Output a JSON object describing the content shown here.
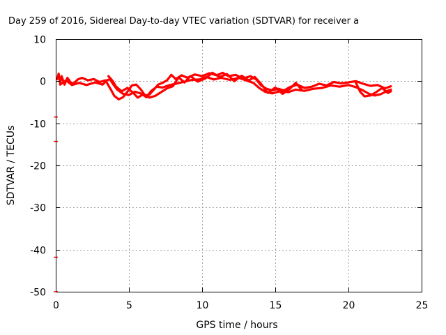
{
  "chart_data": {
    "type": "scatter",
    "title": "Day 259 of 2016, Sidereal Day-to-day VTEC variation (SDTVAR) for receiver a",
    "xlabel": "GPS time / hours",
    "ylabel": "SDTVAR / TECUs",
    "xlim": [
      0,
      25
    ],
    "ylim": [
      -50,
      10
    ],
    "xticks": [
      "0",
      "5",
      "10",
      "15",
      "20",
      "25"
    ],
    "yticks": [
      "10",
      "0",
      "-10",
      "-20",
      "-30",
      "-40",
      "-50"
    ],
    "xtick_values": [
      0,
      5,
      10,
      15,
      20,
      25
    ],
    "ytick_values": [
      10,
      0,
      -10,
      -20,
      -30,
      -40,
      -50
    ],
    "grid": true,
    "marker_color": "#ff0000",
    "series": [
      {
        "traces": [
          [
            [
              0.1,
              0.5
            ],
            [
              0.2,
              1.8
            ],
            [
              0.3,
              -0.5
            ],
            [
              0.4,
              1.2
            ],
            [
              0.6,
              -0.8
            ],
            [
              0.8,
              0.8
            ],
            [
              1.0,
              -0.2
            ],
            [
              1.2,
              -0.6
            ],
            [
              1.5,
              0.4
            ],
            [
              1.8,
              0.8
            ],
            [
              2.2,
              0.2
            ],
            [
              2.6,
              0.5
            ],
            [
              3.0,
              -0.2
            ],
            [
              3.4,
              0.2
            ],
            [
              3.6,
              -1.0
            ],
            [
              3.8,
              -2.2
            ],
            [
              4.0,
              -3.5
            ],
            [
              4.3,
              -4.3
            ],
            [
              4.6,
              -3.8
            ],
            [
              4.9,
              -2.5
            ],
            [
              5.2,
              -1.0
            ],
            [
              5.5,
              -0.8
            ],
            [
              5.8,
              -1.9
            ],
            [
              6.1,
              -3.4
            ],
            [
              6.4,
              -3.2
            ],
            [
              6.7,
              -2.0
            ],
            [
              7.0,
              -0.8
            ],
            [
              7.3,
              -0.4
            ],
            [
              7.6,
              0.2
            ],
            [
              7.9,
              1.5
            ],
            [
              8.2,
              0.5
            ],
            [
              8.6,
              1.4
            ],
            [
              9.0,
              0.8
            ],
            [
              9.5,
              1.6
            ],
            [
              10.0,
              1.2
            ],
            [
              10.5,
              1.9
            ],
            [
              11.0,
              1.4
            ],
            [
              11.4,
              2.0
            ],
            [
              11.8,
              1.2
            ],
            [
              12.3,
              1.5
            ],
            [
              12.8,
              0.6
            ],
            [
              13.3,
              1.2
            ],
            [
              13.7,
              0.4
            ],
            [
              14.0,
              -0.9
            ],
            [
              14.4,
              -1.8
            ],
            [
              14.8,
              -2.2
            ],
            [
              15.2,
              -1.8
            ],
            [
              15.6,
              -2.2
            ],
            [
              16.0,
              -1.4
            ],
            [
              16.5,
              -0.8
            ],
            [
              17.0,
              -1.6
            ],
            [
              17.5,
              -1.3
            ],
            [
              18.0,
              -0.6
            ],
            [
              18.5,
              -1.0
            ],
            [
              19.0,
              -0.2
            ],
            [
              19.5,
              -0.5
            ],
            [
              20.0,
              -0.3
            ],
            [
              20.5,
              0.0
            ],
            [
              21.0,
              -0.6
            ],
            [
              21.5,
              -1.1
            ],
            [
              22.0,
              -0.9
            ],
            [
              22.5,
              -1.7
            ],
            [
              22.9,
              -1.2
            ]
          ],
          [
            [
              0.3,
              -0.8
            ],
            [
              0.7,
              0.2
            ],
            [
              1.1,
              -0.9
            ],
            [
              1.6,
              -0.4
            ],
            [
              2.1,
              -0.9
            ],
            [
              2.7,
              -0.3
            ],
            [
              3.2,
              -0.8
            ],
            [
              3.5,
              0.2
            ],
            [
              3.7,
              0.5
            ],
            [
              3.9,
              -0.6
            ],
            [
              4.2,
              -2.0
            ],
            [
              4.6,
              -3.0
            ],
            [
              5.0,
              -3.3
            ],
            [
              5.4,
              -2.5
            ],
            [
              5.8,
              -2.9
            ],
            [
              6.2,
              -3.8
            ],
            [
              6.5,
              -2.4
            ],
            [
              6.9,
              -1.3
            ],
            [
              7.3,
              -1.5
            ],
            [
              7.8,
              -0.9
            ],
            [
              8.2,
              -0.6
            ],
            [
              8.7,
              -0.2
            ],
            [
              9.3,
              0.3
            ],
            [
              9.8,
              0.4
            ],
            [
              10.3,
              1.0
            ],
            [
              10.8,
              0.4
            ],
            [
              11.3,
              0.8
            ],
            [
              11.9,
              0.3
            ],
            [
              12.5,
              0.8
            ],
            [
              13.0,
              0.2
            ],
            [
              13.5,
              -0.4
            ],
            [
              13.9,
              -1.6
            ],
            [
              14.3,
              -2.5
            ],
            [
              14.8,
              -2.9
            ],
            [
              15.3,
              -2.4
            ],
            [
              15.9,
              -2.6
            ],
            [
              16.4,
              -2.0
            ],
            [
              17.0,
              -2.3
            ],
            [
              17.6,
              -1.8
            ],
            [
              18.2,
              -1.6
            ],
            [
              18.8,
              -1.0
            ],
            [
              19.4,
              -1.3
            ],
            [
              20.0,
              -0.9
            ],
            [
              20.5,
              -1.4
            ],
            [
              21.0,
              -2.2
            ],
            [
              21.4,
              -3.0
            ],
            [
              21.8,
              -3.4
            ],
            [
              22.2,
              -3.1
            ],
            [
              22.6,
              -2.4
            ],
            [
              22.9,
              -2.0
            ]
          ],
          [
            [
              3.6,
              1.2
            ],
            [
              3.9,
              0.0
            ],
            [
              4.1,
              -1.2
            ],
            [
              4.5,
              -2.4
            ],
            [
              4.9,
              -1.6
            ],
            [
              5.3,
              -2.8
            ],
            [
              5.6,
              -3.9
            ],
            [
              6.0,
              -3.1
            ],
            [
              6.4,
              -3.9
            ],
            [
              6.8,
              -3.5
            ],
            [
              7.2,
              -2.6
            ],
            [
              7.6,
              -1.7
            ],
            [
              8.0,
              -1.2
            ],
            [
              8.4,
              0.9
            ],
            [
              8.8,
              -0.3
            ],
            [
              9.2,
              1.2
            ],
            [
              9.7,
              -0.1
            ],
            [
              10.2,
              0.6
            ],
            [
              10.7,
              2.0
            ],
            [
              11.2,
              1.0
            ],
            [
              11.7,
              1.7
            ],
            [
              12.2,
              0.0
            ],
            [
              12.7,
              1.3
            ],
            [
              13.2,
              0.2
            ],
            [
              13.6,
              1.0
            ],
            [
              14.0,
              -0.5
            ],
            [
              14.5,
              -2.8
            ],
            [
              15.0,
              -1.5
            ],
            [
              15.5,
              -3.0
            ],
            [
              16.0,
              -1.8
            ],
            [
              16.4,
              -0.4
            ],
            [
              16.8,
              -2.0
            ]
          ],
          [
            [
              20.5,
              -0.3
            ],
            [
              20.8,
              -2.5
            ],
            [
              21.1,
              -3.6
            ],
            [
              21.5,
              -3.4
            ],
            [
              21.9,
              -2.6
            ],
            [
              22.3,
              -1.6
            ],
            [
              22.7,
              -2.8
            ],
            [
              22.9,
              -2.4
            ]
          ]
        ],
        "outliers": [
          [
            0.0,
            -8.5
          ],
          [
            0.0,
            -14.3
          ],
          [
            0.0,
            -41.8
          ],
          [
            0.0,
            -50.0
          ]
        ]
      }
    ]
  }
}
